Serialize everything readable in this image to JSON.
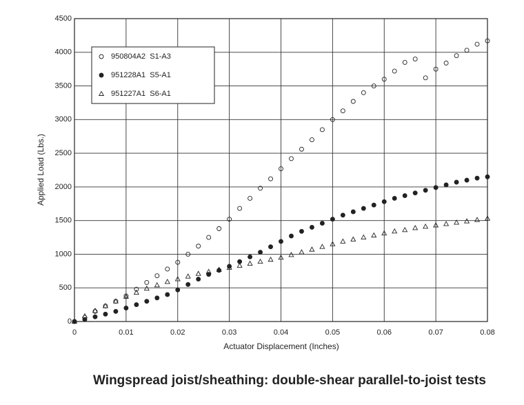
{
  "chart_data": {
    "type": "scatter",
    "title": "Wingspread joist/sheathing: double-shear parallel-to-joist tests",
    "x_label": "Actuator Displacement (Inches)",
    "y_label": "Applied Load (Lbs.)",
    "x": [
      0,
      0.002,
      0.004,
      0.006,
      0.008,
      0.01,
      0.012,
      0.014,
      0.016,
      0.018,
      0.02,
      0.022,
      0.024,
      0.026,
      0.028,
      0.03,
      0.032,
      0.034,
      0.036,
      0.038,
      0.04,
      0.042,
      0.044,
      0.046,
      0.048,
      0.05,
      0.052,
      0.054,
      0.056,
      0.058,
      0.06,
      0.062,
      0.064,
      0.066,
      0.068,
      0.07,
      0.072,
      0.074,
      0.076,
      0.078,
      0.08
    ],
    "series": [
      {
        "name": "950804A2  S1-A3",
        "color": "#222222",
        "marker": "open-circle",
        "values": [
          0,
          60,
          150,
          230,
          300,
          380,
          480,
          580,
          680,
          780,
          880,
          1000,
          1120,
          1250,
          1380,
          1520,
          1680,
          1830,
          1980,
          2120,
          2270,
          2420,
          2560,
          2700,
          2850,
          3000,
          3130,
          3270,
          3400,
          3500,
          3600,
          3720,
          3850,
          3900,
          3620,
          3750,
          3840,
          3950,
          4030,
          4120,
          4170
        ]
      },
      {
        "name": "951228A1  S5-A1",
        "color": "#222222",
        "marker": "filled-circle",
        "values": [
          0,
          30,
          70,
          110,
          150,
          200,
          250,
          300,
          350,
          400,
          470,
          550,
          630,
          700,
          760,
          820,
          890,
          960,
          1030,
          1110,
          1190,
          1270,
          1340,
          1400,
          1460,
          1520,
          1580,
          1630,
          1680,
          1730,
          1780,
          1830,
          1870,
          1910,
          1950,
          1990,
          2030,
          2070,
          2100,
          2130,
          2150
        ]
      },
      {
        "name": "951227A1  S6-A1",
        "color": "#222222",
        "marker": "open-triangle",
        "values": [
          0,
          80,
          160,
          230,
          300,
          370,
          430,
          490,
          540,
          590,
          630,
          670,
          710,
          740,
          770,
          800,
          830,
          860,
          890,
          920,
          950,
          990,
          1030,
          1070,
          1110,
          1150,
          1190,
          1220,
          1250,
          1280,
          1310,
          1340,
          1360,
          1390,
          1410,
          1430,
          1450,
          1470,
          1490,
          1510,
          1530
        ]
      }
    ],
    "xlim": [
      0,
      0.08
    ],
    "xticks": [
      0,
      0.01,
      0.02,
      0.03,
      0.04,
      0.05,
      0.06,
      0.07,
      0.08
    ],
    "ylim": [
      0,
      4500
    ],
    "yticks": [
      0,
      500,
      1000,
      1500,
      2000,
      2500,
      3000,
      3500,
      4000,
      4500
    ],
    "grid": true,
    "legend": "upper-left"
  }
}
